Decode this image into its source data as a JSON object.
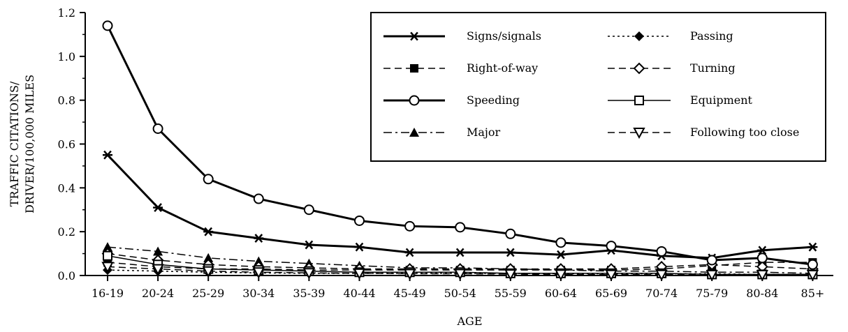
{
  "chart_data": {
    "type": "line",
    "title": "",
    "xlabel": "AGE",
    "ylabel_lines": [
      "TRAFFIC CITATIONS/",
      "DRIVER/100,000 MILES"
    ],
    "ylim": [
      0,
      1.2
    ],
    "yticks": [
      "0.0",
      "0.2",
      "0.4",
      "0.6",
      "0.8",
      "1.0",
      "1.2"
    ],
    "categories": [
      "16-19",
      "20-24",
      "25-29",
      "30-34",
      "35-39",
      "40-44",
      "45-49",
      "50-54",
      "55-59",
      "60-64",
      "65-69",
      "70-74",
      "75-79",
      "80-84",
      "85+"
    ],
    "grid": false,
    "legend_position": "top-right",
    "series": [
      {
        "name": "Signs/signals",
        "marker": "asterisk",
        "dash": "solid",
        "width": 3,
        "values": [
          0.55,
          0.31,
          0.2,
          0.17,
          0.14,
          0.13,
          0.105,
          0.105,
          0.105,
          0.095,
          0.115,
          0.09,
          0.08,
          0.115,
          0.13
        ]
      },
      {
        "name": "Right-of-way",
        "marker": "square-filled",
        "dash": "dashed",
        "width": 1.5,
        "values": [
          0.06,
          0.04,
          0.03,
          0.03,
          0.025,
          0.025,
          0.025,
          0.025,
          0.025,
          0.025,
          0.025,
          0.03,
          0.045,
          0.06,
          0.06
        ]
      },
      {
        "name": "Speeding",
        "marker": "circle-open",
        "dash": "solid",
        "width": 3,
        "values": [
          1.14,
          0.67,
          0.44,
          0.35,
          0.3,
          0.25,
          0.225,
          0.22,
          0.19,
          0.15,
          0.135,
          0.11,
          0.07,
          0.08,
          0.05
        ]
      },
      {
        "name": "Major",
        "marker": "triangle-up-filled",
        "dash": "dashdot",
        "width": 1.5,
        "values": [
          0.13,
          0.11,
          0.08,
          0.065,
          0.055,
          0.045,
          0.035,
          0.035,
          0.03,
          0.025,
          0.02,
          0.02,
          0.015,
          0.015,
          0.01
        ]
      },
      {
        "name": "Passing",
        "marker": "diamond-filled",
        "dash": "dotted",
        "width": 1.5,
        "values": [
          0.025,
          0.02,
          0.015,
          0.012,
          0.01,
          0.01,
          0.01,
          0.01,
          0.01,
          0.008,
          0.008,
          0.008,
          0.008,
          0.005,
          0.005
        ]
      },
      {
        "name": "Turning",
        "marker": "diamond-open",
        "dash": "dashed",
        "width": 1.5,
        "values": [
          0.1,
          0.07,
          0.05,
          0.04,
          0.035,
          0.03,
          0.03,
          0.03,
          0.03,
          0.03,
          0.03,
          0.04,
          0.05,
          0.04,
          0.03
        ]
      },
      {
        "name": "Equipment",
        "marker": "square-open",
        "dash": "solid",
        "width": 1.5,
        "values": [
          0.09,
          0.05,
          0.03,
          0.025,
          0.02,
          0.015,
          0.015,
          0.015,
          0.01,
          0.01,
          0.01,
          0.01,
          0.005,
          0.005,
          0.005
        ]
      },
      {
        "name": "Following too close",
        "marker": "triangle-down-open",
        "dash": "dashed",
        "width": 1.5,
        "values": [
          0.04,
          0.03,
          0.02,
          0.015,
          0.012,
          0.01,
          0.008,
          0.008,
          0.006,
          0.005,
          0.004,
          0.004,
          0.003,
          0.003,
          0.003
        ]
      }
    ]
  }
}
